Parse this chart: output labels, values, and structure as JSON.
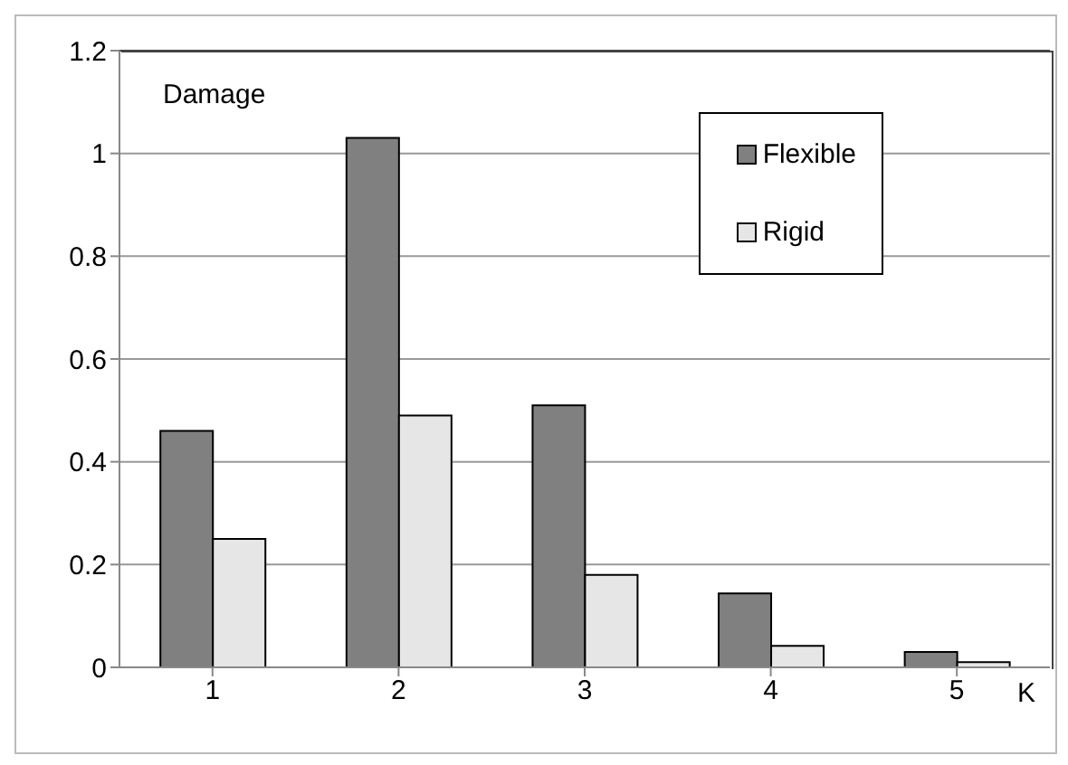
{
  "chart_data": {
    "type": "bar",
    "ylabel": "Damage",
    "xlabel": "K",
    "categories": [
      "1",
      "2",
      "3",
      "4",
      "5"
    ],
    "series": [
      {
        "name": "Flexible",
        "color": "#808080",
        "values": [
          0.46,
          1.03,
          0.51,
          0.144,
          0.03
        ]
      },
      {
        "name": "Rigid",
        "color": "#e6e6e6",
        "values": [
          0.25,
          0.49,
          0.18,
          0.042,
          0.01
        ]
      }
    ],
    "ylim": [
      0,
      1.2
    ],
    "yticks": [
      0,
      0.2,
      0.4,
      0.6,
      0.8,
      1,
      1.2
    ],
    "grid": "y",
    "legend": "top right"
  }
}
